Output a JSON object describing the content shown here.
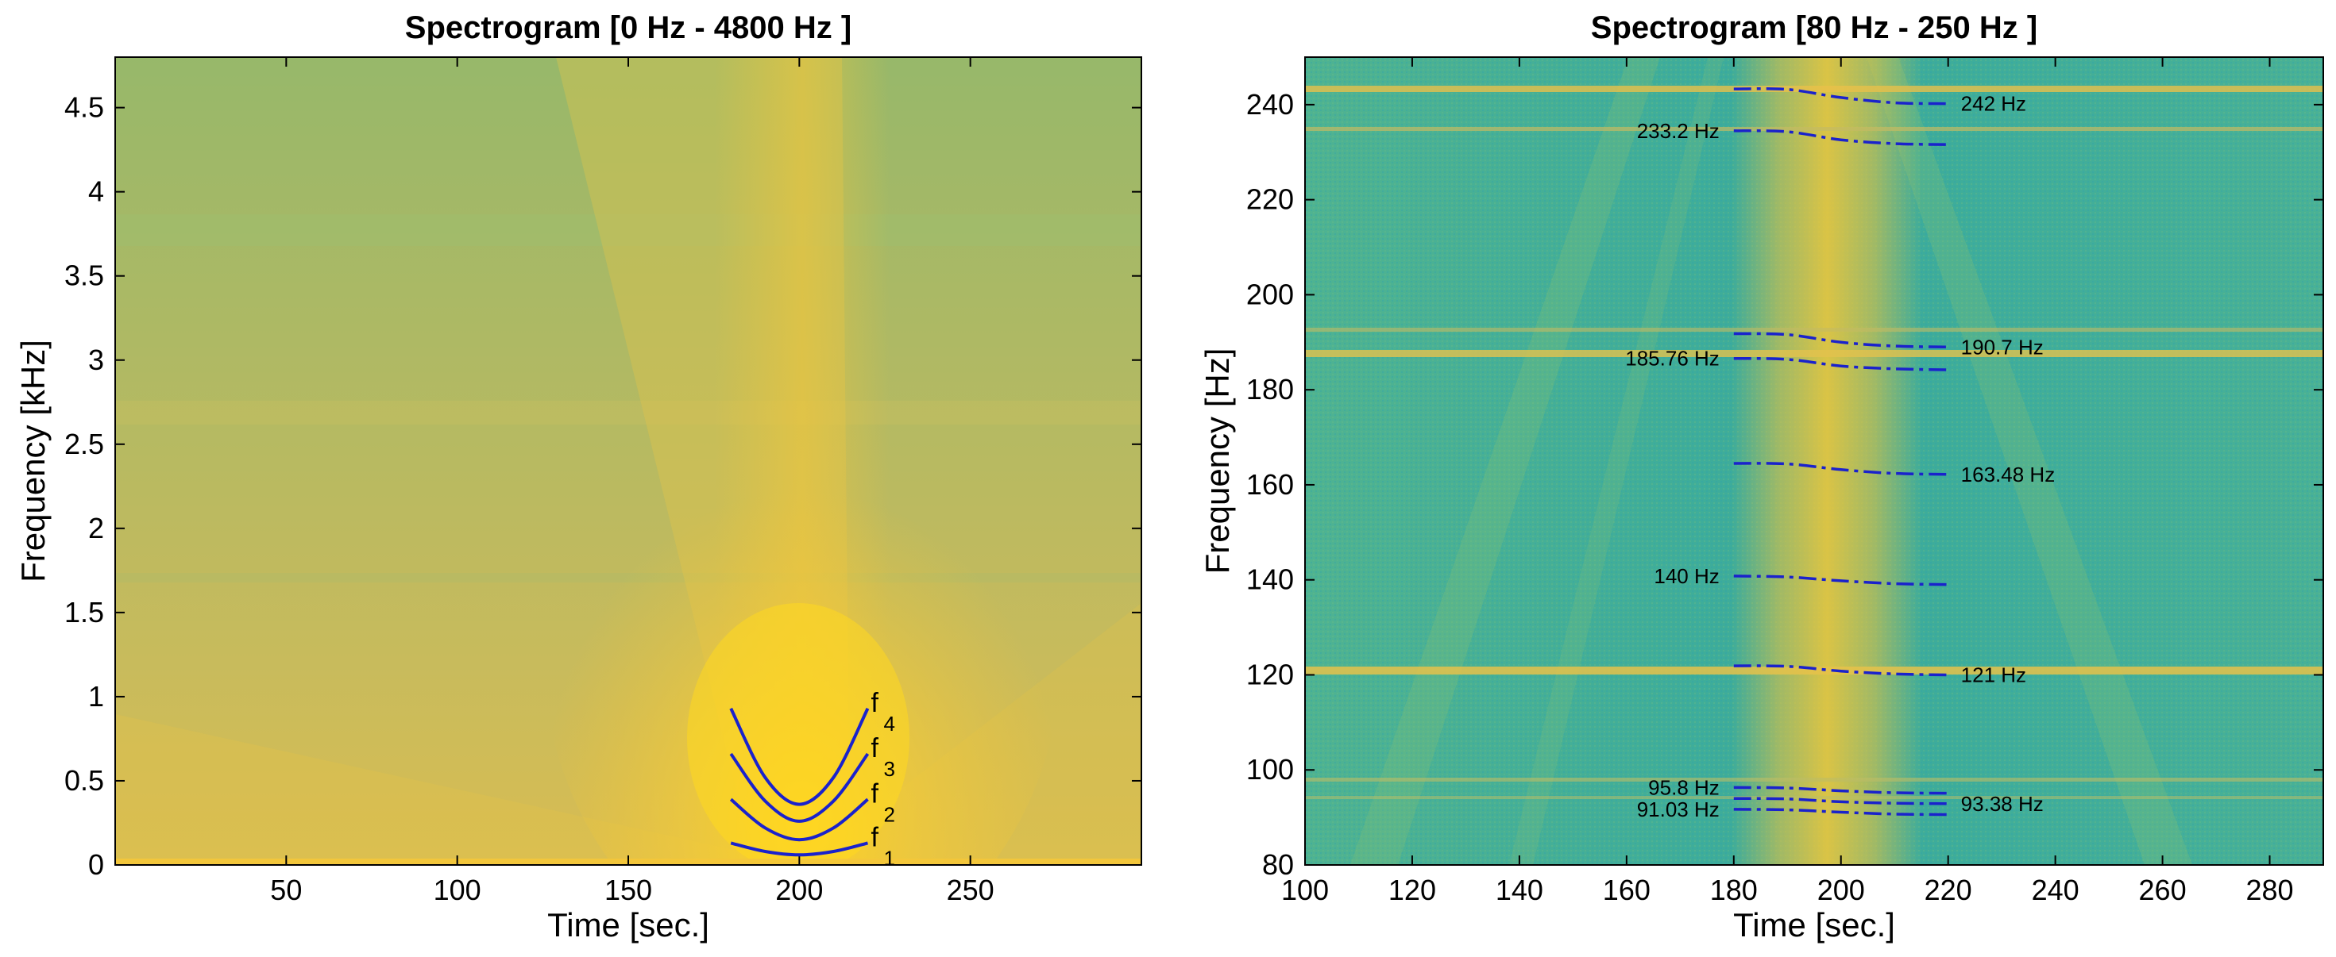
{
  "colors": {
    "curve": "#1a22cc",
    "plot_bg_left": "#b9b864",
    "plot_bg_right": "#3fae9a",
    "warm": "#f0c43a",
    "hot": "#ffd126",
    "axis": "#000000"
  },
  "chart_data": [
    {
      "type": "heatmap",
      "title": "Spectrogram [0 Hz - 4800 Hz ]",
      "xlabel": "Time [sec.]",
      "ylabel": "Frequency [kHz]",
      "xlim": [
        0,
        300
      ],
      "ylim": [
        0,
        4.8
      ],
      "xticks": [
        50,
        100,
        150,
        200,
        250
      ],
      "xtick_labels": [
        "50",
        "100",
        "150",
        "200",
        "250"
      ],
      "yticks": [
        0,
        0.5,
        1,
        1.5,
        2,
        2.5,
        3,
        3.5,
        4,
        4.5
      ],
      "ytick_labels": [
        "0",
        "0.5",
        "1",
        "1.5",
        "2",
        "2.5",
        "3",
        "3.5",
        "4",
        "4.5"
      ],
      "series": [
        {
          "name": "f1",
          "base": "f",
          "sub": "1",
          "x": [
            180,
            190,
            200,
            210,
            220
          ],
          "y": [
            0.13,
            0.08,
            0.06,
            0.08,
            0.13
          ]
        },
        {
          "name": "f2",
          "base": "f",
          "sub": "2",
          "x": [
            180,
            190,
            200,
            210,
            220
          ],
          "y": [
            0.39,
            0.22,
            0.15,
            0.22,
            0.39
          ]
        },
        {
          "name": "f3",
          "base": "f",
          "sub": "3",
          "x": [
            180,
            190,
            200,
            210,
            220
          ],
          "y": [
            0.66,
            0.38,
            0.26,
            0.38,
            0.66
          ]
        },
        {
          "name": "f4",
          "base": "f",
          "sub": "4",
          "x": [
            180,
            190,
            200,
            210,
            220
          ],
          "y": [
            0.93,
            0.52,
            0.36,
            0.52,
            0.93
          ]
        }
      ]
    },
    {
      "type": "heatmap",
      "title": "Spectrogram [80 Hz - 250 Hz ]",
      "xlabel": "Time [sec.]",
      "ylabel": "Frequency [Hz]",
      "xlim": [
        100,
        290
      ],
      "ylim": [
        80,
        250
      ],
      "xticks": [
        100,
        120,
        140,
        160,
        180,
        200,
        220,
        240,
        260,
        280
      ],
      "xtick_labels": [
        "100",
        "120",
        "140",
        "160",
        "180",
        "200",
        "220",
        "240",
        "260",
        "280"
      ],
      "yticks": [
        80,
        100,
        120,
        140,
        160,
        180,
        200,
        220,
        240
      ],
      "ytick_labels": [
        "80",
        "100",
        "120",
        "140",
        "160",
        "180",
        "200",
        "220",
        "240"
      ],
      "series": [
        {
          "name": "242 Hz",
          "label": "242 Hz",
          "side": "right",
          "x": [
            180,
            190,
            200,
            210,
            220
          ],
          "y": [
            243.3,
            243.2,
            241.5,
            240.4,
            240.2
          ]
        },
        {
          "name": "233.2 Hz",
          "label": "233.2 Hz",
          "side": "left",
          "x": [
            180,
            190,
            200,
            210,
            220
          ],
          "y": [
            234.5,
            234.3,
            232.6,
            231.8,
            231.6
          ]
        },
        {
          "name": "190.7 Hz",
          "label": "190.7 Hz",
          "side": "right",
          "x": [
            180,
            190,
            200,
            210,
            220
          ],
          "y": [
            191.8,
            191.6,
            190.0,
            189.2,
            189.0
          ]
        },
        {
          "name": "185.76 Hz",
          "label": "185.76 Hz",
          "side": "left",
          "x": [
            180,
            190,
            200,
            210,
            220
          ],
          "y": [
            186.6,
            186.4,
            185.0,
            184.4,
            184.2
          ]
        },
        {
          "name": "163.48 Hz",
          "label": "163.48 Hz",
          "side": "right",
          "x": [
            180,
            190,
            200,
            210,
            220
          ],
          "y": [
            164.5,
            164.4,
            163.2,
            162.4,
            162.2
          ]
        },
        {
          "name": "140 Hz",
          "label": "140 Hz",
          "side": "left",
          "x": [
            180,
            190,
            200,
            210,
            220
          ],
          "y": [
            140.8,
            140.6,
            139.8,
            139.2,
            139.0
          ]
        },
        {
          "name": "121 Hz",
          "label": "121 Hz",
          "side": "right",
          "x": [
            180,
            190,
            200,
            210,
            220
          ],
          "y": [
            121.9,
            121.8,
            120.8,
            120.2,
            120.0
          ]
        },
        {
          "name": "95.8 Hz",
          "label": "95.8 Hz",
          "side": "left",
          "x": [
            180,
            190,
            200,
            210,
            220
          ],
          "y": [
            96.3,
            96.2,
            95.6,
            95.2,
            95.1
          ]
        },
        {
          "name": "93.38 Hz",
          "label": "93.38 Hz",
          "side": "right",
          "x": [
            180,
            190,
            200,
            210,
            220
          ],
          "y": [
            94.0,
            93.9,
            93.3,
            93.0,
            92.9
          ]
        },
        {
          "name": "91.03 Hz",
          "label": "91.03 Hz",
          "side": "left",
          "x": [
            180,
            190,
            200,
            210,
            220
          ],
          "y": [
            91.7,
            91.6,
            91.1,
            90.7,
            90.6
          ]
        }
      ]
    }
  ]
}
